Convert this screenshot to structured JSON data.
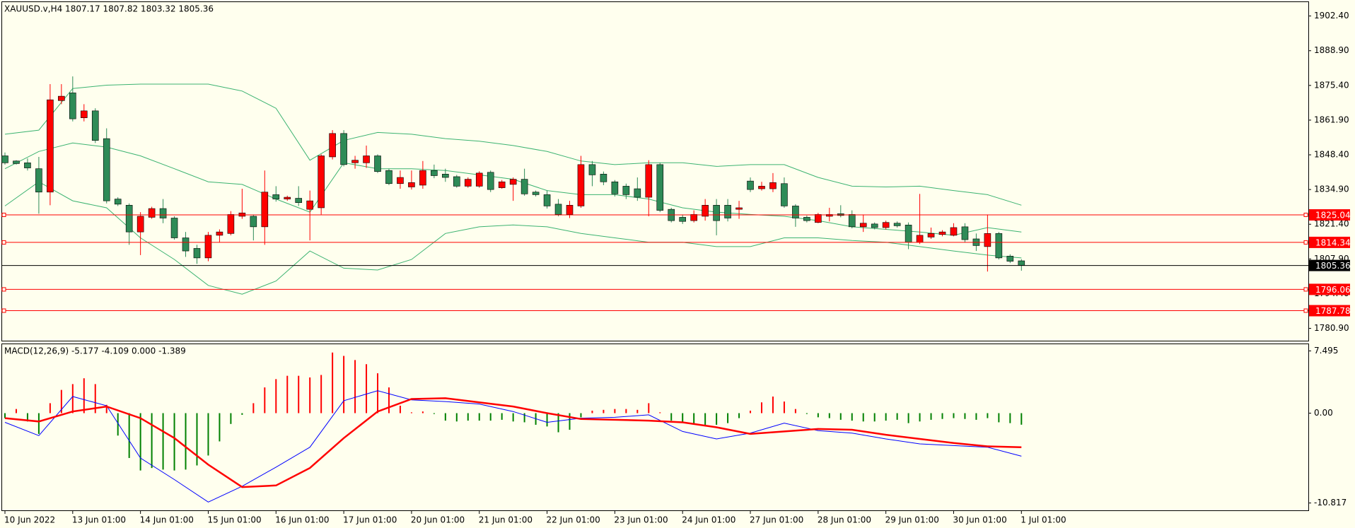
{
  "chart_data": [
    {
      "type": "candlestick",
      "title": "XAUUSD.v,H4  1807.17 1807.82 1803.32 1805.36",
      "categories": [
        "10 Jun 2022",
        null,
        null,
        null,
        null,
        null,
        "13 Jun 01:00",
        null,
        null,
        null,
        null,
        null,
        "14 Jun 01:00",
        null,
        null,
        null,
        null,
        null,
        "15 Jun 01:00",
        null,
        null,
        null,
        null,
        null,
        "16 Jun 01:00",
        null,
        null,
        null,
        null,
        null,
        "17 Jun 01:00",
        null,
        null,
        null,
        null,
        null,
        "20 Jun 01:00",
        null,
        null,
        null,
        null,
        null,
        "21 Jun 01:00",
        null,
        null,
        null,
        null,
        null,
        "22 Jun 01:00",
        null,
        null,
        null,
        null,
        null,
        "23 Jun 01:00",
        null,
        null,
        null,
        null,
        null,
        "24 Jun 01:00",
        null,
        null,
        null,
        null,
        null,
        "27 Jun 01:00",
        null,
        null,
        null,
        null,
        null,
        "28 Jun 01:00",
        null,
        null,
        null,
        null,
        null,
        "29 Jun 01:00",
        null,
        null,
        null,
        null,
        null,
        "30 Jun 01:00",
        null,
        null,
        null,
        null,
        null,
        "1 Jul 01:00"
      ],
      "open": [
        1848.0,
        1846.0,
        1845.3,
        1843.0,
        1833.9,
        1869.5,
        1872.5,
        1862.8,
        1865.5,
        1854.7,
        1831.2,
        1828.8,
        1818.4,
        1824.1,
        1827.5,
        1823.8,
        1816.1,
        1812.0,
        1808.3,
        1817.1,
        1817.8,
        1824.5,
        1824.5,
        1820.4,
        1832.9,
        1831.2,
        1831.5,
        1827.2,
        1827.8,
        1847.6,
        1856.7,
        1845.3,
        1845.3,
        1848.0,
        1842.3,
        1837.2,
        1835.9,
        1836.6,
        1842.3,
        1840.9,
        1839.9,
        1836.2,
        1836.2,
        1841.6,
        1835.6,
        1836.9,
        1838.9,
        1833.9,
        1832.9,
        1829.2,
        1825.2,
        1828.5,
        1844.6,
        1840.9,
        1837.9,
        1836.2,
        1835.2,
        1831.9,
        1844.6,
        1827.2,
        1824.1,
        1822.8,
        1824.5,
        1828.8,
        1828.8,
        1827.2,
        1838.2,
        1835.2,
        1835.2,
        1837.2,
        1828.5,
        1824.1,
        1822.1,
        1824.5,
        1825.5,
        1825.2,
        1820.4,
        1821.5,
        1820.1,
        1821.8,
        1821.1,
        1814.4,
        1816.4,
        1817.4,
        1817.1,
        1820.4,
        1815.7,
        1812.7,
        1817.8,
        1809.0,
        1807.17
      ],
      "high": [
        1849.3,
        1846.3,
        1847.0,
        1847.6,
        1875.9,
        1875.9,
        1878.9,
        1868.1,
        1866.5,
        1858.7,
        1831.9,
        1829.5,
        1826.1,
        1828.2,
        1831.2,
        1824.5,
        1818.4,
        1813.4,
        1818.4,
        1819.4,
        1826.5,
        1835.2,
        1825.2,
        1842.3,
        1836.2,
        1832.5,
        1836.2,
        1834.5,
        1848.6,
        1858.0,
        1858.0,
        1848.0,
        1852.0,
        1848.6,
        1843.0,
        1842.3,
        1842.3,
        1846.0,
        1844.6,
        1843.0,
        1840.6,
        1839.6,
        1842.0,
        1842.3,
        1838.6,
        1839.6,
        1843.0,
        1834.5,
        1834.5,
        1831.2,
        1830.5,
        1848.0,
        1846.0,
        1841.9,
        1838.6,
        1837.2,
        1839.6,
        1846.3,
        1845.3,
        1827.8,
        1825.2,
        1826.8,
        1831.2,
        1831.2,
        1831.2,
        1830.5,
        1839.6,
        1837.9,
        1841.3,
        1839.6,
        1829.2,
        1824.8,
        1825.8,
        1827.8,
        1828.8,
        1826.8,
        1825.2,
        1822.1,
        1822.8,
        1822.5,
        1822.1,
        1833.2,
        1820.1,
        1819.1,
        1821.8,
        1821.8,
        1817.8,
        1825.2,
        1818.4,
        1809.7,
        1807.82
      ],
      "low": [
        1844.6,
        1844.6,
        1842.3,
        1825.5,
        1828.8,
        1868.1,
        1861.4,
        1861.4,
        1853.0,
        1829.5,
        1828.5,
        1813.4,
        1809.4,
        1823.5,
        1821.8,
        1815.4,
        1808.7,
        1806.0,
        1807.0,
        1814.4,
        1817.1,
        1823.5,
        1815.1,
        1813.4,
        1830.2,
        1830.5,
        1828.5,
        1815.1,
        1825.2,
        1846.6,
        1843.9,
        1843.0,
        1843.3,
        1841.3,
        1836.6,
        1835.2,
        1834.9,
        1835.2,
        1839.3,
        1837.9,
        1835.6,
        1835.6,
        1835.6,
        1833.9,
        1835.2,
        1830.5,
        1832.5,
        1832.2,
        1827.5,
        1824.5,
        1823.8,
        1827.8,
        1836.2,
        1836.6,
        1832.2,
        1831.2,
        1830.5,
        1824.5,
        1826.1,
        1822.1,
        1821.5,
        1822.1,
        1822.8,
        1817.1,
        1822.5,
        1823.5,
        1833.9,
        1834.5,
        1833.9,
        1827.8,
        1820.4,
        1822.1,
        1821.8,
        1822.5,
        1824.1,
        1819.8,
        1818.4,
        1819.4,
        1819.4,
        1820.1,
        1811.7,
        1813.7,
        1815.7,
        1816.7,
        1816.7,
        1814.4,
        1811.0,
        1803.0,
        1807.7,
        1806.3,
        1803.32
      ],
      "close": [
        1845.3,
        1845.0,
        1843.3,
        1833.9,
        1869.8,
        1871.2,
        1862.4,
        1865.5,
        1854.0,
        1830.5,
        1829.2,
        1818.4,
        1824.5,
        1827.5,
        1823.8,
        1816.1,
        1811.0,
        1808.3,
        1817.1,
        1818.4,
        1825.2,
        1825.8,
        1820.4,
        1833.9,
        1831.2,
        1831.9,
        1829.8,
        1830.5,
        1848.0,
        1856.7,
        1844.6,
        1846.3,
        1848.0,
        1841.9,
        1837.2,
        1839.6,
        1837.6,
        1842.3,
        1840.3,
        1839.6,
        1836.2,
        1838.9,
        1841.3,
        1834.9,
        1837.9,
        1838.9,
        1833.2,
        1832.9,
        1828.5,
        1825.2,
        1828.8,
        1844.6,
        1840.6,
        1837.9,
        1833.2,
        1832.9,
        1831.9,
        1844.6,
        1826.8,
        1822.8,
        1822.5,
        1825.2,
        1828.8,
        1822.8,
        1823.8,
        1827.8,
        1834.9,
        1836.2,
        1837.6,
        1828.5,
        1823.8,
        1822.8,
        1825.2,
        1825.2,
        1824.8,
        1820.4,
        1821.8,
        1820.1,
        1822.1,
        1820.8,
        1814.4,
        1817.1,
        1817.8,
        1818.4,
        1820.1,
        1815.4,
        1813.1,
        1817.8,
        1808.3,
        1807.0,
        1805.36
      ],
      "up_color": "#ff0000",
      "down_color": "#2e8b57",
      "last_price_color": "#000000",
      "lines": [
        {
          "color": "#3cb371",
          "x": [
            0,
            3,
            6,
            9,
            12,
            15,
            18,
            21,
            24,
            27,
            30,
            33,
            36,
            39,
            42,
            45,
            48,
            51,
            54,
            57,
            60,
            63,
            66,
            69,
            72,
            75,
            78,
            81,
            84,
            87,
            90
          ],
          "values": [
            1856.4,
            1858.0,
            1874.2,
            1875.5,
            1875.9,
            1875.9,
            1875.9,
            1873.2,
            1866.5,
            1846.3,
            1854.0,
            1857.1,
            1856.4,
            1854.7,
            1853.7,
            1852.0,
            1849.7,
            1846.0,
            1844.6,
            1845.3,
            1845.3,
            1843.9,
            1844.6,
            1844.6,
            1839.6,
            1836.2,
            1835.9,
            1836.2,
            1834.5,
            1832.9,
            1828.8
          ]
        },
        {
          "color": "#3cb371",
          "x": [
            0,
            3,
            6,
            9,
            12,
            15,
            18,
            21,
            24,
            27,
            30,
            33,
            36,
            39,
            42,
            45,
            48,
            51,
            54,
            57,
            60,
            63,
            66,
            69,
            72,
            75,
            78,
            81,
            84,
            87,
            90
          ],
          "values": [
            1843.0,
            1849.7,
            1853.0,
            1851.4,
            1848.0,
            1843.0,
            1837.9,
            1836.9,
            1831.2,
            1826.1,
            1845.3,
            1843.0,
            1843.0,
            1842.3,
            1840.6,
            1838.9,
            1834.5,
            1832.9,
            1832.9,
            1831.2,
            1827.8,
            1826.1,
            1825.2,
            1824.5,
            1822.8,
            1820.4,
            1819.4,
            1818.4,
            1817.1,
            1820.1,
            1818.4
          ]
        },
        {
          "color": "#3cb371",
          "x": [
            0,
            3,
            6,
            9,
            12,
            15,
            18,
            21,
            24,
            27,
            30,
            33,
            36,
            39,
            42,
            45,
            48,
            51,
            54,
            57,
            60,
            63,
            66,
            69,
            72,
            75,
            78,
            81,
            84,
            87,
            90
          ],
          "values": [
            1828.5,
            1837.9,
            1830.5,
            1827.8,
            1816.1,
            1807.7,
            1797.6,
            1794.2,
            1799.3,
            1811.0,
            1804.3,
            1803.6,
            1807.7,
            1817.8,
            1820.4,
            1821.1,
            1820.4,
            1817.8,
            1816.1,
            1814.4,
            1814.4,
            1812.7,
            1812.7,
            1816.1,
            1816.1,
            1815.1,
            1814.4,
            1812.7,
            1811.0,
            1809.4,
            1808.3
          ]
        }
      ],
      "levels": [
        {
          "value": 1825.04,
          "color": "#ff0000"
        },
        {
          "value": 1814.34,
          "color": "#ff0000"
        },
        {
          "value": 1796.06,
          "color": "#ff0000"
        },
        {
          "value": 1787.78,
          "color": "#ff0000"
        }
      ],
      "ylim": [
        1776.1,
        1907.8
      ],
      "yticks": [
        {
          "value": 1902.4,
          "label": "1902.40"
        },
        {
          "value": 1888.9,
          "label": "1888.90"
        },
        {
          "value": 1875.4,
          "label": "1875.40"
        },
        {
          "value": 1861.9,
          "label": "1861.90"
        },
        {
          "value": 1848.4,
          "label": "1848.40"
        },
        {
          "value": 1834.9,
          "label": "1834.90"
        },
        {
          "value": 1821.4,
          "label": "1821.40"
        },
        {
          "value": 1807.9,
          "label": "1807.90"
        },
        {
          "value": 1794.4,
          "label": "1794.40"
        },
        {
          "value": 1780.9,
          "label": "1780.90"
        }
      ]
    },
    {
      "type": "macd",
      "title": "MACD(12,26,9) -5.177 -4.109 0.000 -1.389",
      "values": [
        -0.6,
        0.5,
        -1.0,
        -2.5,
        1.2,
        2.8,
        3.5,
        4.2,
        3.5,
        1.0,
        -2.7,
        -5.4,
        -6.9,
        -6.6,
        -6.8,
        -6.9,
        -6.8,
        -6.3,
        -5.1,
        -3.4,
        -1.3,
        -0.2,
        1.2,
        3.1,
        4.1,
        4.5,
        4.5,
        4.3,
        4.6,
        7.3,
        6.9,
        6.4,
        5.9,
        4.8,
        3.1,
        0.9,
        0.1,
        0.2,
        -0.1,
        -0.9,
        -1.0,
        -0.9,
        -0.9,
        -0.9,
        -0.8,
        -1.0,
        -1.1,
        -1.4,
        -1.6,
        -2.3,
        -2.0,
        -0.5,
        0.3,
        0.4,
        0.5,
        0.5,
        0.4,
        1.2,
        0.1,
        -0.9,
        -1.1,
        -1.3,
        -1.4,
        -1.4,
        -1.2,
        -0.6,
        0.3,
        1.3,
        2.0,
        1.4,
        0.5,
        -0.1,
        -0.5,
        -0.6,
        -0.8,
        -0.9,
        -1.0,
        -1.0,
        -0.9,
        -0.8,
        -1.2,
        -1.0,
        -0.8,
        -0.7,
        -0.6,
        -0.7,
        -0.8,
        -0.6,
        -1.1,
        -1.2,
        -1.389
      ],
      "pos_color": "#ff0000",
      "neg_color": "#008000",
      "lines": [
        {
          "color": "#0000ff",
          "width": 1,
          "x": [
            0,
            3,
            6,
            9,
            12,
            15,
            18,
            21,
            24,
            27,
            30,
            33,
            36,
            39,
            42,
            45,
            48,
            51,
            54,
            57,
            60,
            63,
            66,
            69,
            72,
            75,
            78,
            81,
            84,
            87,
            90
          ],
          "values": [
            -1.1,
            -2.7,
            2.0,
            0.9,
            -5.4,
            -8.0,
            -10.7,
            -8.8,
            -6.5,
            -4.1,
            1.5,
            2.7,
            1.6,
            1.4,
            1.1,
            0.2,
            -1.1,
            -0.6,
            -0.5,
            -0.2,
            -2.2,
            -3.1,
            -2.4,
            -1.2,
            -2.1,
            -2.4,
            -3.1,
            -3.7,
            -3.9,
            -4.1,
            -5.177
          ]
        },
        {
          "color": "#ff0000",
          "width": 2.5,
          "x": [
            0,
            3,
            6,
            9,
            12,
            15,
            18,
            21,
            24,
            27,
            30,
            33,
            36,
            39,
            42,
            45,
            48,
            51,
            54,
            57,
            60,
            63,
            66,
            69,
            72,
            75,
            78,
            81,
            84,
            87,
            90
          ],
          "values": [
            -0.6,
            -1.0,
            0.2,
            0.8,
            -0.6,
            -3.0,
            -6.2,
            -8.9,
            -8.7,
            -6.6,
            -3.0,
            0.2,
            1.7,
            1.8,
            1.3,
            0.8,
            0.0,
            -0.7,
            -0.8,
            -0.9,
            -1.1,
            -1.7,
            -2.5,
            -2.2,
            -1.9,
            -2.0,
            -2.6,
            -3.1,
            -3.6,
            -4.0,
            -4.109
          ]
        }
      ],
      "ylim": [
        -11.7,
        8.3
      ],
      "yticks": [
        7.495,
        {
          "value": 0,
          "label": "0.00"
        },
        -10.817
      ]
    }
  ]
}
